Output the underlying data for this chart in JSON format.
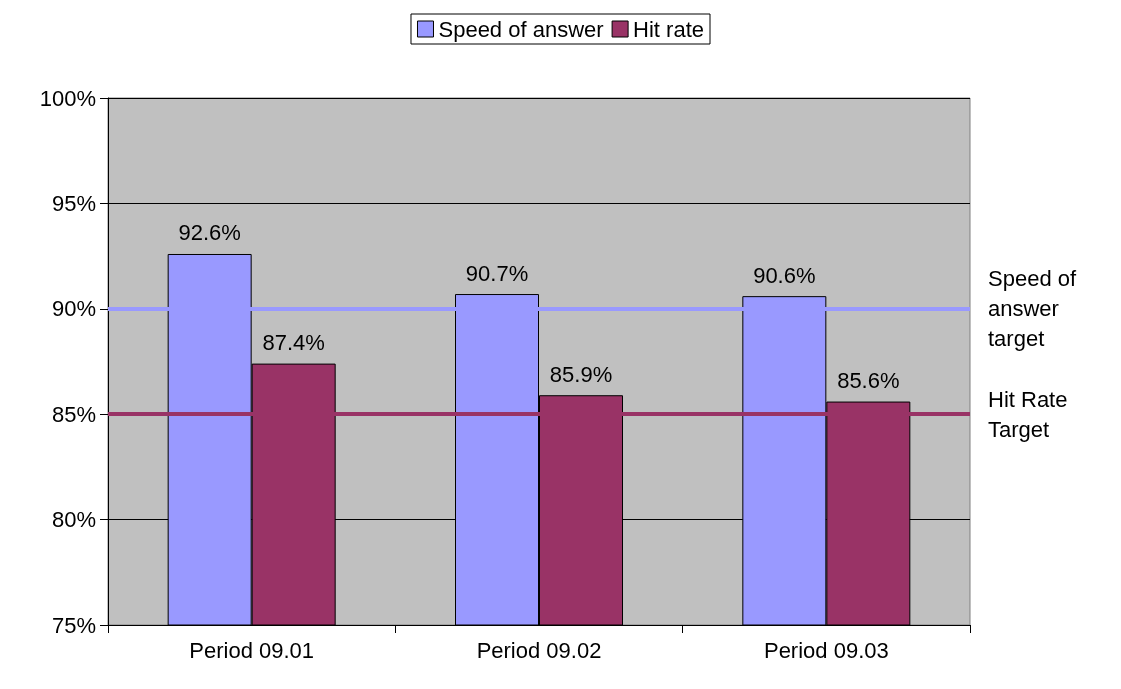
{
  "chart_data": {
    "type": "bar",
    "categories": [
      "Period 09.01",
      "Period 09.02",
      "Period 09.03"
    ],
    "series": [
      {
        "name": "Speed of answer",
        "color": "#9999ff",
        "values": [
          92.6,
          90.7,
          90.6
        ],
        "value_labels": [
          "92.6%",
          "90.7%",
          "90.6%"
        ]
      },
      {
        "name": "Hit rate",
        "color": "#993366",
        "values": [
          87.4,
          85.9,
          85.6
        ],
        "value_labels": [
          "87.4%",
          "85.9%",
          "85.6%"
        ]
      }
    ],
    "ylim": [
      75,
      100
    ],
    "yticks": [
      {
        "value": 75,
        "label": "75%"
      },
      {
        "value": 80,
        "label": "80%"
      },
      {
        "value": 85,
        "label": "85%"
      },
      {
        "value": 90,
        "label": "90%"
      },
      {
        "value": 95,
        "label": "95%"
      },
      {
        "value": 100,
        "label": "100%"
      }
    ],
    "ref_lines": [
      {
        "axis": "y",
        "value": 90,
        "label": "Speed of answer target",
        "color": "#9999ff"
      },
      {
        "axis": "y",
        "value": 85,
        "label": "Hit Rate Target",
        "color": "#993366"
      }
    ],
    "grid": "y",
    "legend": "top"
  }
}
